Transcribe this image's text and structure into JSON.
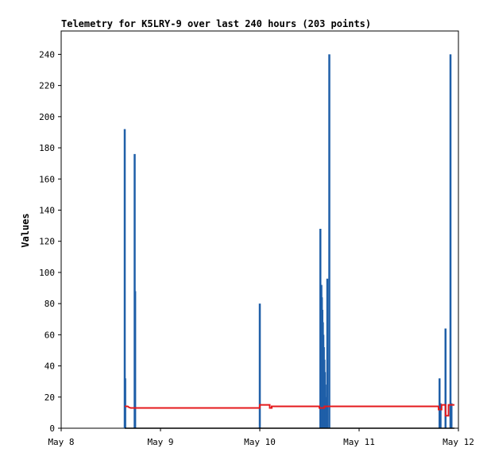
{
  "chart_data": {
    "type": "line",
    "title": "Telemetry for K5LRY-9 over last 240 hours (203 points)",
    "xlabel": "",
    "ylabel": "Values",
    "xlim": [
      "May 8",
      "May 12"
    ],
    "ylim": [
      0,
      255
    ],
    "y_ticks": [
      0,
      20,
      40,
      60,
      80,
      100,
      120,
      140,
      160,
      180,
      200,
      220,
      240
    ],
    "x_ticks": [
      {
        "label": "May 8",
        "value": 0
      },
      {
        "label": "May 9",
        "value": 1
      },
      {
        "label": "May 10",
        "value": 2
      },
      {
        "label": "May 11",
        "value": 3
      },
      {
        "label": "May 12",
        "value": 4
      }
    ],
    "grid": false,
    "colors": {
      "blue": "#1f5fa8",
      "red": "#e41a1c",
      "black": "#000000"
    },
    "series": [
      {
        "color": "#1f5fa8",
        "style": "spikes",
        "points": [
          {
            "x": 0.64,
            "y": 192
          },
          {
            "x": 0.645,
            "y": 32
          },
          {
            "x": 0.74,
            "y": 176
          },
          {
            "x": 0.745,
            "y": 88
          },
          {
            "x": 2.0,
            "y": 80
          },
          {
            "x": 2.61,
            "y": 128
          },
          {
            "x": 2.62,
            "y": 92
          },
          {
            "x": 2.625,
            "y": 84
          },
          {
            "x": 2.63,
            "y": 76
          },
          {
            "x": 2.635,
            "y": 68
          },
          {
            "x": 2.64,
            "y": 60
          },
          {
            "x": 2.645,
            "y": 52
          },
          {
            "x": 2.65,
            "y": 44
          },
          {
            "x": 2.655,
            "y": 36
          },
          {
            "x": 2.66,
            "y": 28
          },
          {
            "x": 2.665,
            "y": 20
          },
          {
            "x": 2.67,
            "y": 12
          },
          {
            "x": 2.68,
            "y": 96
          },
          {
            "x": 2.7,
            "y": 240
          },
          {
            "x": 3.81,
            "y": 32
          },
          {
            "x": 3.82,
            "y": 16
          },
          {
            "x": 3.87,
            "y": 64
          },
          {
            "x": 3.92,
            "y": 240
          },
          {
            "x": 3.93,
            "y": 16
          }
        ]
      },
      {
        "color": "#e41a1c",
        "style": "step",
        "points": [
          {
            "x": 0.64,
            "y": 14
          },
          {
            "x": 0.67,
            "y": 14
          },
          {
            "x": 0.68,
            "y": 13.5
          },
          {
            "x": 0.7,
            "y": 13
          },
          {
            "x": 2.0,
            "y": 13
          },
          {
            "x": 2.0,
            "y": 15
          },
          {
            "x": 2.1,
            "y": 15
          },
          {
            "x": 2.1,
            "y": 13
          },
          {
            "x": 2.12,
            "y": 13
          },
          {
            "x": 2.12,
            "y": 14
          },
          {
            "x": 2.6,
            "y": 14
          },
          {
            "x": 2.6,
            "y": 13
          },
          {
            "x": 2.65,
            "y": 13
          },
          {
            "x": 2.65,
            "y": 14
          },
          {
            "x": 3.8,
            "y": 14
          },
          {
            "x": 3.8,
            "y": 12
          },
          {
            "x": 3.83,
            "y": 12
          },
          {
            "x": 3.83,
            "y": 15
          },
          {
            "x": 3.87,
            "y": 15
          },
          {
            "x": 3.87,
            "y": 8
          },
          {
            "x": 3.9,
            "y": 8
          },
          {
            "x": 3.9,
            "y": 15
          },
          {
            "x": 3.96,
            "y": 15
          }
        ]
      },
      {
        "color": "#000000",
        "style": "line",
        "points": [
          {
            "x": 0.64,
            "y": 0
          },
          {
            "x": 3.96,
            "y": 0
          }
        ]
      }
    ]
  }
}
